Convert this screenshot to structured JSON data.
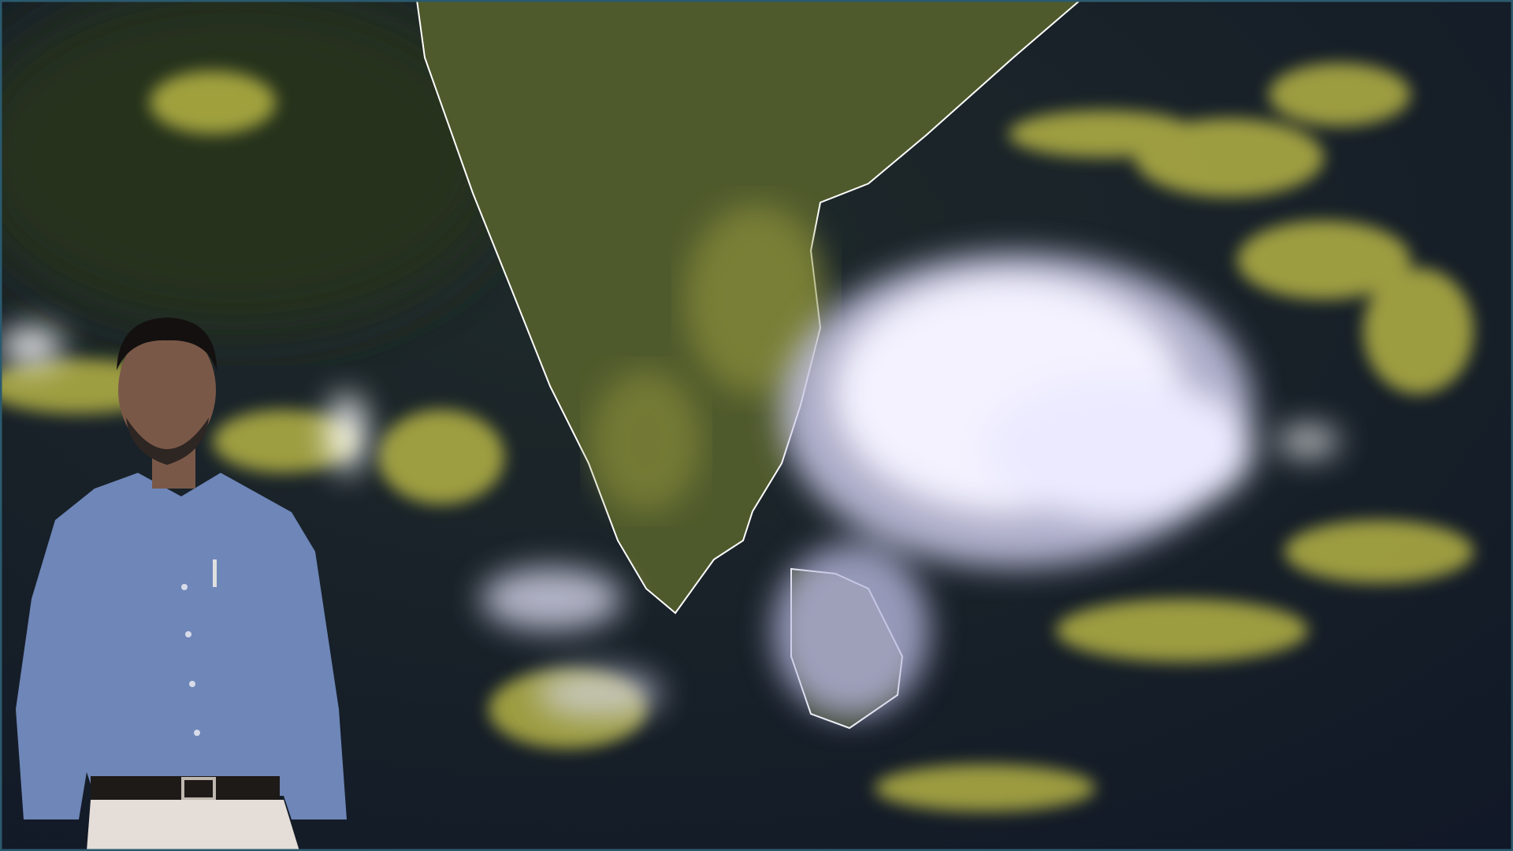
{
  "image": {
    "kind": "satellite weather image with person overlay",
    "colors": {
      "ocean": "#141c2c",
      "land": "#4f5a2c",
      "coastline": "#ffffff",
      "cloud_bright": "#f4f2ff",
      "cloud_yellow": "#c9c64a",
      "shirt": "#6e86b8",
      "trousers": "#e4ddd8",
      "frame": "#2b5a6e"
    }
  }
}
